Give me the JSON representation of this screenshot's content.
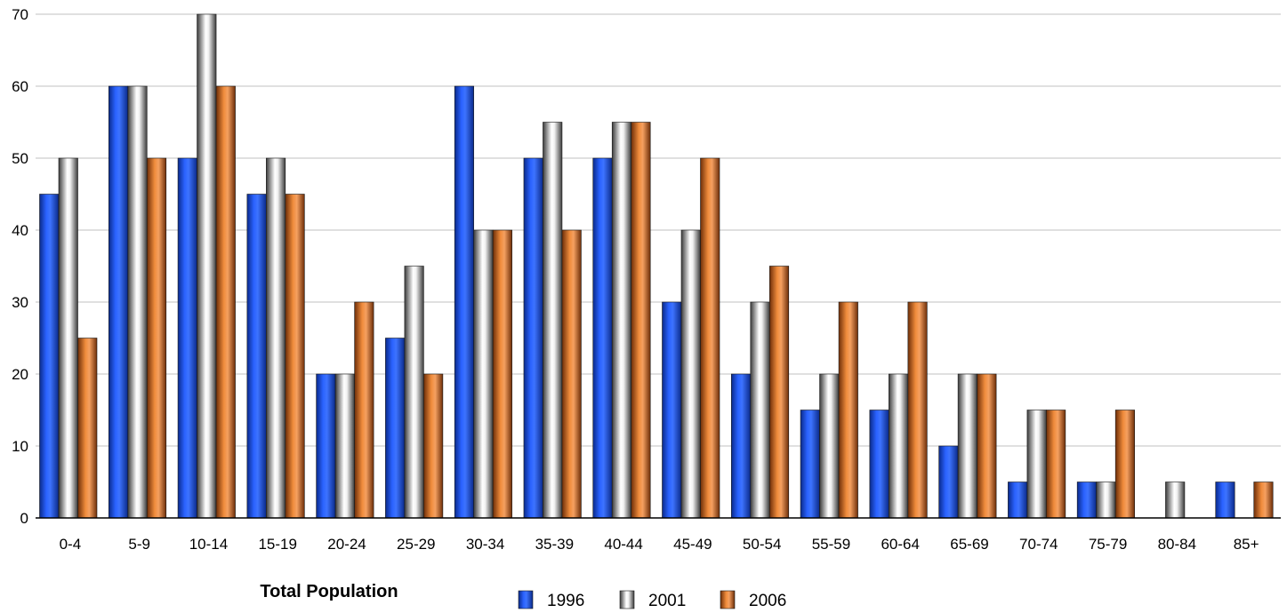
{
  "chart_data": {
    "type": "bar",
    "title": "Total Population",
    "xlabel": "",
    "ylabel": "",
    "ylim": [
      0,
      70
    ],
    "yticks": [
      0,
      10,
      20,
      30,
      40,
      50,
      60,
      70
    ],
    "grid": true,
    "legend_position": "bottom",
    "categories": [
      "0-4",
      "5-9",
      "10-14",
      "15-19",
      "20-24",
      "25-29",
      "30-34",
      "35-39",
      "40-44",
      "45-49",
      "50-54",
      "55-59",
      "60-64",
      "65-69",
      "70-74",
      "75-79",
      "80-84",
      "85+"
    ],
    "series": [
      {
        "name": "1996",
        "color": "#1f4fd6",
        "values": [
          45,
          60,
          50,
          45,
          20,
          25,
          60,
          50,
          50,
          30,
          20,
          15,
          15,
          10,
          5,
          5,
          0,
          5
        ]
      },
      {
        "name": "2001",
        "color": "#9a9a9a",
        "values": [
          50,
          60,
          70,
          50,
          20,
          35,
          40,
          55,
          55,
          40,
          30,
          20,
          20,
          20,
          15,
          5,
          5,
          0
        ]
      },
      {
        "name": "2006",
        "color": "#e07b2e",
        "values": [
          25,
          50,
          60,
          45,
          30,
          20,
          40,
          40,
          55,
          50,
          35,
          30,
          30,
          20,
          15,
          15,
          0,
          5
        ]
      }
    ]
  }
}
